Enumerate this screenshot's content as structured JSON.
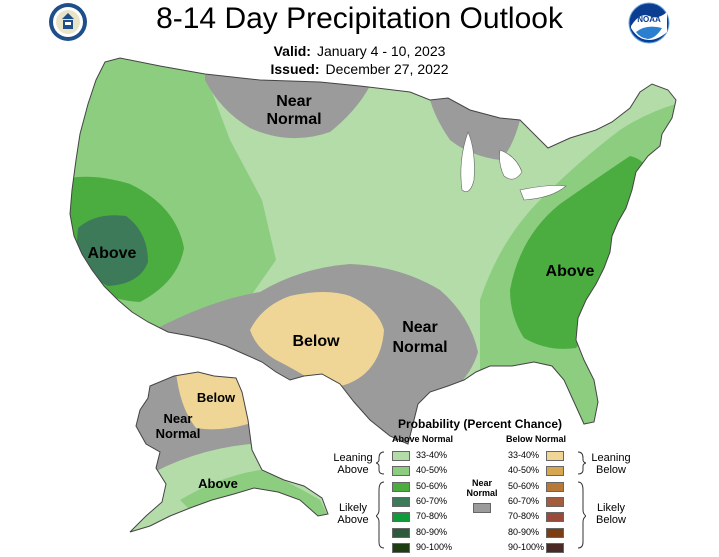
{
  "header": {
    "title": "8-14 Day Precipitation Outlook",
    "valid_label": "Valid:",
    "valid_value": "January 4 - 10, 2023",
    "issued_label": "Issued:",
    "issued_value": "December 27, 2022",
    "noaa_logo_text": "NOAA"
  },
  "map_labels": {
    "above_west": "Above",
    "near_normal_north_1": "Near",
    "near_normal_north_2": "Normal",
    "below_south": "Below",
    "near_normal_south_1": "Near",
    "near_normal_south_2": "Normal",
    "above_east": "Above",
    "below_alaska": "Below",
    "near_normal_alaska_1": "Near",
    "near_normal_alaska_2": "Normal",
    "above_alaska": "Above"
  },
  "legend": {
    "title": "Probability (Percent Chance)",
    "above_header": "Above Normal",
    "below_header": "Below Normal",
    "near_normal_1": "Near",
    "near_normal_2": "Normal",
    "leaning_above_1": "Leaning",
    "leaning_above_2": "Above",
    "likely_above_1": "Likely",
    "likely_above_2": "Above",
    "leaning_below_1": "Leaning",
    "leaning_below_2": "Below",
    "likely_below_1": "Likely",
    "likely_below_2": "Below",
    "above_bins": [
      {
        "label": "33-40%",
        "color": "#b3dca8"
      },
      {
        "label": "40-50%",
        "color": "#8ccd80"
      },
      {
        "label": "50-60%",
        "color": "#4bad40"
      },
      {
        "label": "60-70%",
        "color": "#3d7a5a"
      },
      {
        "label": "70-80%",
        "color": "#109a3a"
      },
      {
        "label": "80-90%",
        "color": "#2c5a3a"
      },
      {
        "label": "90-100%",
        "color": "#1f3d12"
      }
    ],
    "below_bins": [
      {
        "label": "33-40%",
        "color": "#f0d696"
      },
      {
        "label": "40-50%",
        "color": "#d6a650"
      },
      {
        "label": "50-60%",
        "color": "#b87838"
      },
      {
        "label": "60-70%",
        "color": "#a35d3c"
      },
      {
        "label": "70-80%",
        "color": "#9a4a3a"
      },
      {
        "label": "80-90%",
        "color": "#7a3e12"
      },
      {
        "label": "90-100%",
        "color": "#4a2a26"
      }
    ],
    "near_normal_color": "#9b9b9b"
  }
}
